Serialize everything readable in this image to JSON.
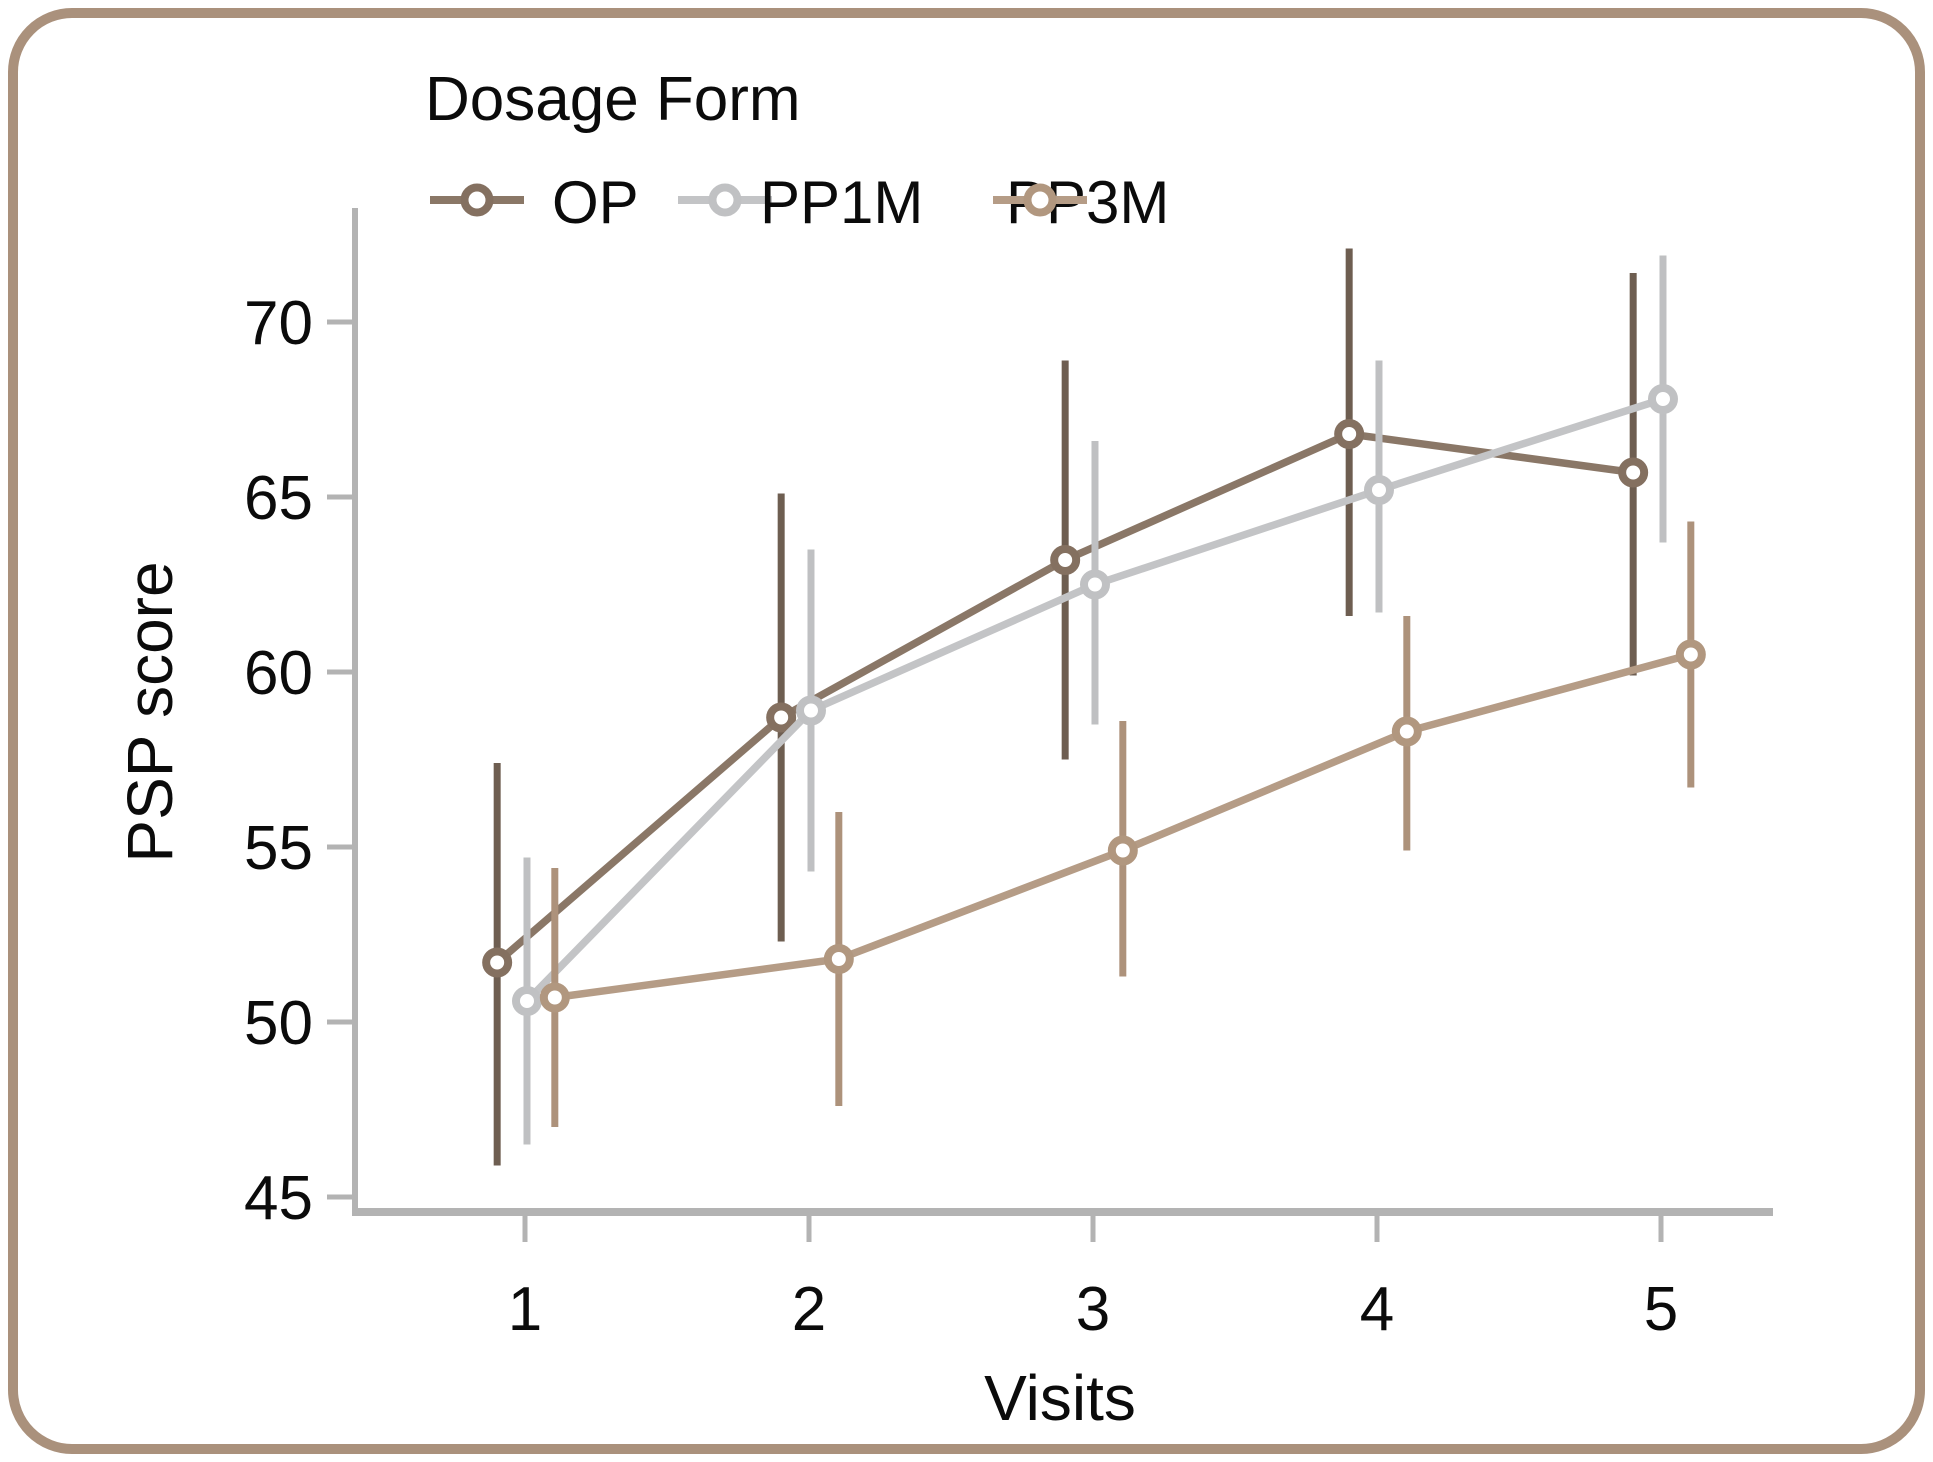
{
  "figure": {
    "border_color": "#aa917c",
    "background_color": "#ffffff"
  },
  "legend": {
    "title": "Dosage Form",
    "entries": [
      {
        "label": "OP"
      },
      {
        "label": "PP1M"
      },
      {
        "label": "PP3M"
      }
    ]
  },
  "axes": {
    "y_label": "PSP score",
    "x_label": "Visits",
    "y_ticks": [
      45,
      50,
      55,
      60,
      65,
      70
    ],
    "x_ticks": [
      1,
      2,
      3,
      4,
      5
    ],
    "axis_color": "#b3b3b3",
    "tick_text_color": "#0b0b0b"
  },
  "chart_data": {
    "type": "line",
    "title": "",
    "xlabel": "Visits",
    "ylabel": "PSP score",
    "x": [
      1,
      2,
      3,
      4,
      5
    ],
    "ylim": [
      44.1,
      73.3
    ],
    "xlim": [
      0.4,
      5.35
    ],
    "grid": false,
    "legend_position": "top-left",
    "error_bars": true,
    "marker": "open-circle",
    "series": [
      {
        "name": "OP",
        "color": "#8a7767",
        "marker_color": "#847060",
        "error_color": "#6e5e51",
        "x_dodge": -0.098,
        "values": [
          51.7,
          58.7,
          63.2,
          66.8,
          65.7
        ],
        "err_low": [
          45.9,
          52.3,
          57.5,
          61.6,
          59.9
        ],
        "err_high": [
          57.4,
          65.1,
          68.9,
          72.1,
          71.4
        ]
      },
      {
        "name": "PP1M",
        "color": "#c3c4c6",
        "marker_color": "#c0c1c3",
        "error_color": "#bfc0c2",
        "x_dodge": 0.007,
        "values": [
          50.6,
          58.9,
          62.5,
          65.2,
          67.8
        ],
        "err_low": [
          46.5,
          54.3,
          58.5,
          61.7,
          63.7
        ],
        "err_high": [
          54.7,
          63.5,
          66.6,
          68.9,
          71.9
        ]
      },
      {
        "name": "PP3M",
        "color": "#b59c86",
        "marker_color": "#b1977f",
        "error_color": "#ad927b",
        "x_dodge": 0.105,
        "values": [
          50.7,
          51.8,
          54.9,
          58.3,
          60.5
        ],
        "err_low": [
          47.0,
          47.6,
          51.3,
          54.9,
          56.7
        ],
        "err_high": [
          54.4,
          56.0,
          58.6,
          61.6,
          64.3
        ]
      }
    ]
  }
}
